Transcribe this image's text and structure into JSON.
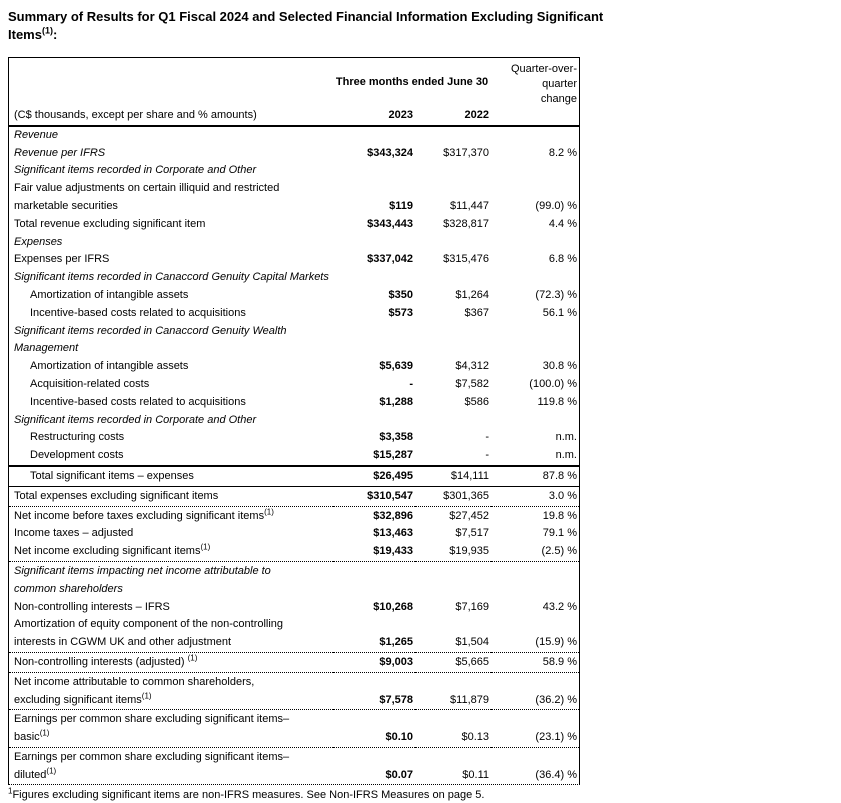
{
  "title": {
    "line1": "Summary of Results for Q1 Fiscal 2024 and Selected Financial Information Excluding Significant",
    "line2": "Items",
    "sup": "(1)",
    "suffix": ":"
  },
  "table": {
    "header": {
      "group": "Three months ended June 30",
      "change_lines": [
        "Quarter-over-",
        "quarter",
        "change"
      ],
      "desc": "(C$ thousands, except per share and % amounts)",
      "y2023": "2023",
      "y2022": "2022"
    },
    "rows": [
      {
        "label": "Revenue",
        "italic": true,
        "v2023": "",
        "v2022": "",
        "change": ""
      },
      {
        "label": "Revenue per IFRS",
        "italic": true,
        "v2023": "$343,324",
        "v2022": "$317,370",
        "change": "8.2 %"
      },
      {
        "label": "Significant items recorded in Corporate and Other",
        "italic": true,
        "v2023": "",
        "v2022": "",
        "change": ""
      },
      {
        "label": "Fair value adjustments on certain illiquid and restricted",
        "label2": "marketable securities",
        "v2023": "$119",
        "v2022": "$11,447",
        "change": "(99.0) %"
      },
      {
        "label": "Total revenue excluding significant item",
        "v2023": "$343,443",
        "v2022": "$328,817",
        "change": "4.4 %"
      },
      {
        "label": "Expenses",
        "italic": true,
        "v2023": "",
        "v2022": "",
        "change": ""
      },
      {
        "label": "Expenses per IFRS",
        "v2023": "$337,042",
        "v2022": "$315,476",
        "change": "6.8 %"
      },
      {
        "label": "Significant items recorded in Canaccord Genuity Capital Markets",
        "italic": true,
        "v2023": "",
        "v2022": "",
        "change": ""
      },
      {
        "label": "Amortization of intangible assets",
        "indent": true,
        "v2023": "$350",
        "v2022": "$1,264",
        "change": "(72.3) %"
      },
      {
        "label": "Incentive-based costs related to acquisitions",
        "indent": true,
        "v2023": "$573",
        "v2022": "$367",
        "change": "56.1 %"
      },
      {
        "label": "Significant items recorded in Canaccord Genuity Wealth Management",
        "italic": true,
        "v2023": "",
        "v2022": "",
        "change": ""
      },
      {
        "label": "Amortization of intangible assets",
        "indent": true,
        "v2023": "$5,639",
        "v2022": "$4,312",
        "change": "30.8 %"
      },
      {
        "label": "Acquisition-related costs",
        "indent": true,
        "v2023": "-",
        "v2022": "$7,582",
        "change": "(100.0) %"
      },
      {
        "label": "Incentive-based costs related to acquisitions",
        "indent": true,
        "v2023": "$1,288",
        "v2022": "$586",
        "change": "119.8 %"
      },
      {
        "label": "Significant items recorded in Corporate and Other",
        "italic": true,
        "v2023": "",
        "v2022": "",
        "change": ""
      },
      {
        "label": "Restructuring costs",
        "indent": true,
        "v2023": "$3,358",
        "v2022": "-",
        "change": "n.m."
      },
      {
        "label": "Development costs",
        "indent": true,
        "v2023": "$15,287",
        "v2022": "-",
        "change": "n.m."
      },
      {
        "label": "Total significant items – expenses",
        "indent": true,
        "border": "solid2",
        "v2023": "$26,495",
        "v2022": "$14,111",
        "change": "87.8 %"
      },
      {
        "label": "Total expenses excluding significant items",
        "border": "solid1",
        "v2023": "$310,547",
        "v2022": "$301,365",
        "change": "3.0 %"
      },
      {
        "label": "Net income before taxes excluding significant items",
        "sup": "(1)",
        "border": "dotted",
        "v2023": "$32,896",
        "v2022": "$27,452",
        "change": "19.8 %"
      },
      {
        "label": "Income taxes – adjusted",
        "v2023": "$13,463",
        "v2022": "$7,517",
        "change": "79.1 %"
      },
      {
        "label": "Net income excluding significant items",
        "sup": "(1)",
        "v2023": "$19,433",
        "v2022": "$19,935",
        "change": "(2.5) %"
      },
      {
        "label": "Significant items impacting net income attributable to",
        "label2": "common shareholders",
        "italic": true,
        "border": "dotted",
        "v2023": "",
        "v2022": "",
        "change": ""
      },
      {
        "label": "Non-controlling interests – IFRS",
        "v2023": "$10,268",
        "v2022": "$7,169",
        "change": "43.2 %"
      },
      {
        "label": "Amortization of equity component of the non-controlling",
        "label2": "interests in CGWM UK and other adjustment",
        "v2023": "$1,265",
        "v2022": "$1,504",
        "change": "(15.9) %"
      },
      {
        "label": "Non-controlling interests (adjusted) ",
        "sup": "(1)",
        "border": "dotted",
        "v2023": "$9,003",
        "v2022": "$5,665",
        "change": "58.9 %"
      },
      {
        "label": "Net income attributable to common shareholders,",
        "label2": "excluding significant items",
        "sup2": "(1)",
        "border": "dotted",
        "v2023": "$7,578",
        "v2022": "$11,879",
        "change": "(36.2) %"
      },
      {
        "label": "Earnings per common share excluding significant items–",
        "label2": "basic",
        "sup2": "(1)",
        "border": "dotted",
        "v2023": "$0.10",
        "v2022": "$0.13",
        "change": "(23.1) %"
      },
      {
        "label": "Earnings per common share excluding significant items–",
        "label2": "diluted",
        "sup2": "(1)",
        "border": "dotted",
        "v2023": "$0.07",
        "v2022": "$0.11",
        "change": "(36.4) %"
      }
    ]
  },
  "footnote": {
    "sup": "1",
    "text": "Figures excluding significant items are non-IFRS measures. See Non-IFRS Measures on page 5."
  }
}
